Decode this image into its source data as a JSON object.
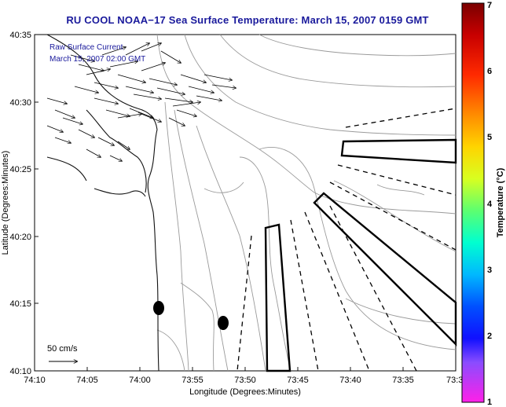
{
  "title": "RU COOL  NOAA−17  Sea Surface Temperature:  March 15, 2007 0159 GMT",
  "map": {
    "legend_line1": "Raw Surface Current",
    "legend_line2": "March 15, 2007 02:00 GMT",
    "scale_label": "50 cm/s",
    "x_axis_label": "Longitude (Degrees:Minutes)",
    "y_axis_label": "Latitude (Degrees:Minutes)",
    "x_ticks": [
      "74:10",
      "74:05",
      "74:00",
      "73:55",
      "73:50",
      "73:45",
      "73:40",
      "73:35",
      "73:3"
    ],
    "y_ticks": [
      "40:35",
      "40:30",
      "40:25",
      "40:20",
      "40:15",
      "40:10"
    ],
    "land_color": "#ffffff",
    "contour_color": "#9a9a9a"
  },
  "colorbar": {
    "label": "Temperature (°C)",
    "ticks": [
      "7",
      "6",
      "5",
      "4",
      "3",
      "2",
      "1"
    ],
    "range": [
      1,
      7
    ]
  }
}
